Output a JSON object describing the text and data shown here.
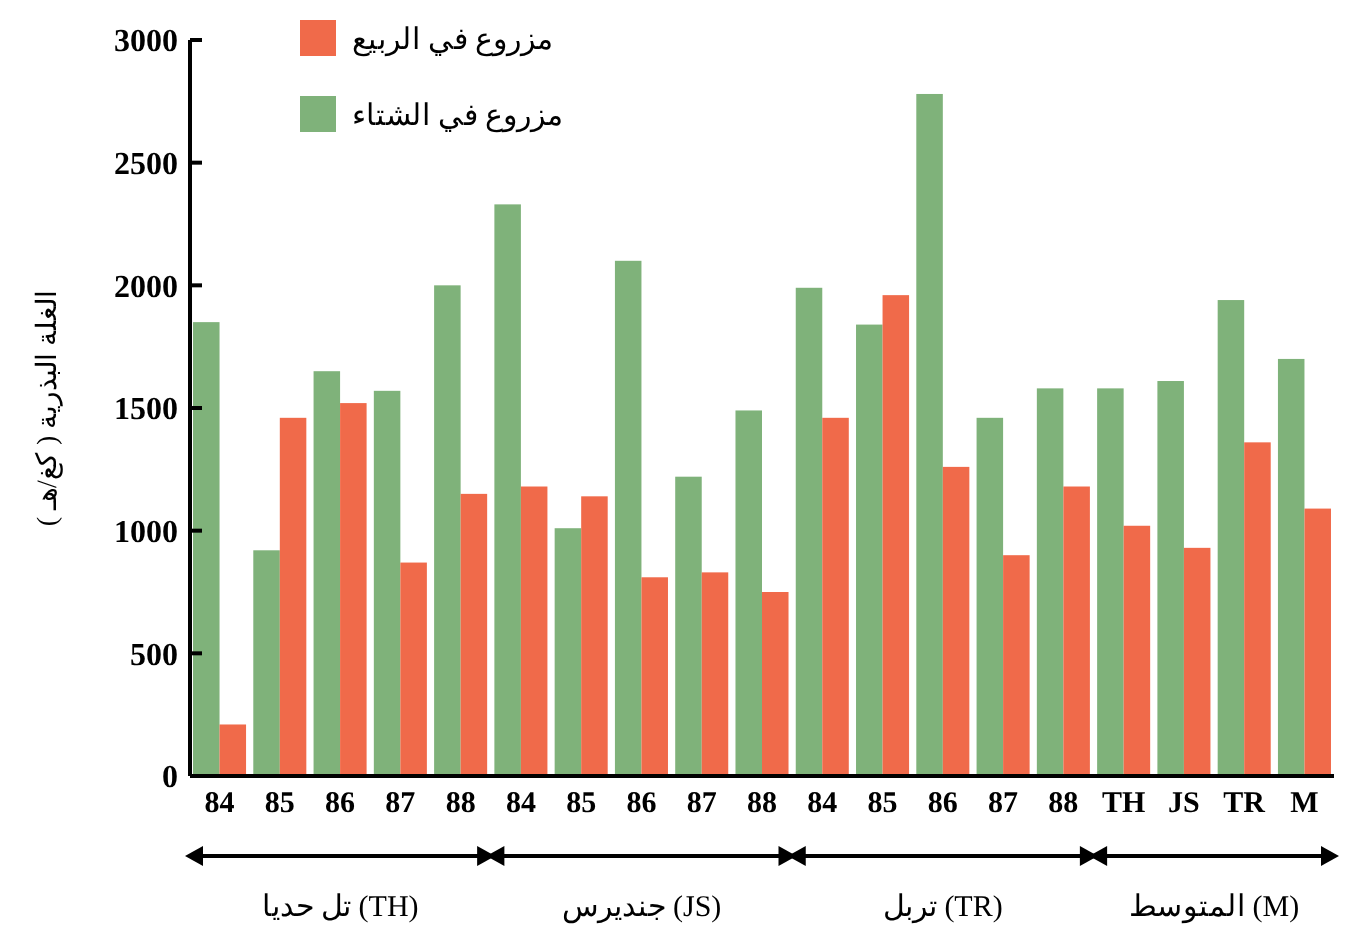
{
  "chart_data": {
    "type": "bar",
    "categories": [
      "84",
      "85",
      "86",
      "87",
      "88",
      "84",
      "85",
      "86",
      "87",
      "88",
      "84",
      "85",
      "86",
      "87",
      "88",
      "TH",
      "JS",
      "TR",
      "M"
    ],
    "ylabel": "الغلة البذرية ( كغ/هـ )",
    "series": [
      {
        "name": "مزروع في الشتاء",
        "color": "#7fb27a",
        "values": [
          1850,
          920,
          1650,
          1570,
          2000,
          2330,
          1010,
          2100,
          1220,
          1490,
          1990,
          1840,
          2780,
          1460,
          1580,
          1580,
          1610,
          1940,
          1700
        ]
      },
      {
        "name": "مزروع في الربيع",
        "color": "#f06a4a",
        "values": [
          210,
          1460,
          1520,
          870,
          1150,
          1180,
          1140,
          810,
          830,
          750,
          1460,
          1960,
          1260,
          900,
          1180,
          1020,
          930,
          1360,
          1090
        ]
      }
    ],
    "ylim": [
      0,
      3000
    ],
    "yticks": [
      0,
      500,
      1000,
      1500,
      2000,
      2500,
      3000
    ],
    "grid": false,
    "legend": "top left",
    "annotations": [
      "تل حديا (TH)",
      "جنديرس (JS)",
      "تربل (TR)",
      "المتوسط (M)"
    ]
  }
}
